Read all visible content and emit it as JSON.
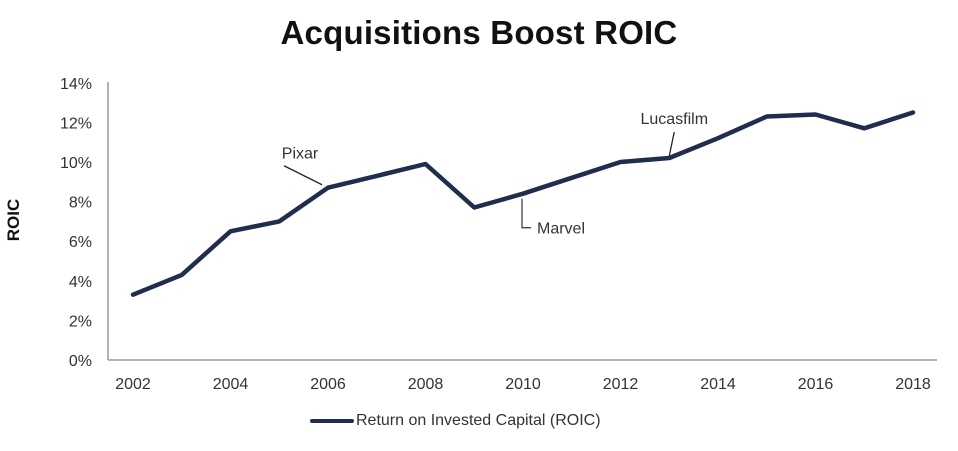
{
  "chart_data": {
    "type": "line",
    "title": "Acquisitions Boost ROIC",
    "xlabel": "",
    "ylabel": "ROIC",
    "x": [
      2002,
      2003,
      2004,
      2005,
      2006,
      2007,
      2008,
      2009,
      2010,
      2011,
      2012,
      2013,
      2014,
      2015,
      2016,
      2017,
      2018
    ],
    "series": [
      {
        "name": "Return on Invested Capital (ROIC)",
        "color": "#1f2d4f",
        "values": [
          3.3,
          4.3,
          6.5,
          7.0,
          8.7,
          9.3,
          9.9,
          7.7,
          8.4,
          9.2,
          10.0,
          10.2,
          11.2,
          12.3,
          12.4,
          11.7,
          12.5
        ]
      }
    ],
    "ylim": [
      0,
      14
    ],
    "y_ticks": [
      "0%",
      "2%",
      "4%",
      "6%",
      "8%",
      "10%",
      "12%",
      "14%"
    ],
    "x_ticks": [
      "2002",
      "2004",
      "2006",
      "2008",
      "2010",
      "2012",
      "2014",
      "2016",
      "2018"
    ],
    "grid": false,
    "legend_position": "bottom",
    "annotations": [
      {
        "label": "Pixar",
        "x": 2006
      },
      {
        "label": "Marvel",
        "x": 2010
      },
      {
        "label": "Lucasfilm",
        "x": 2013
      }
    ]
  },
  "title": "Acquisitions Boost ROIC",
  "ylabel": "ROIC",
  "legend": {
    "label": "Return on Invested Capital (ROIC)"
  }
}
